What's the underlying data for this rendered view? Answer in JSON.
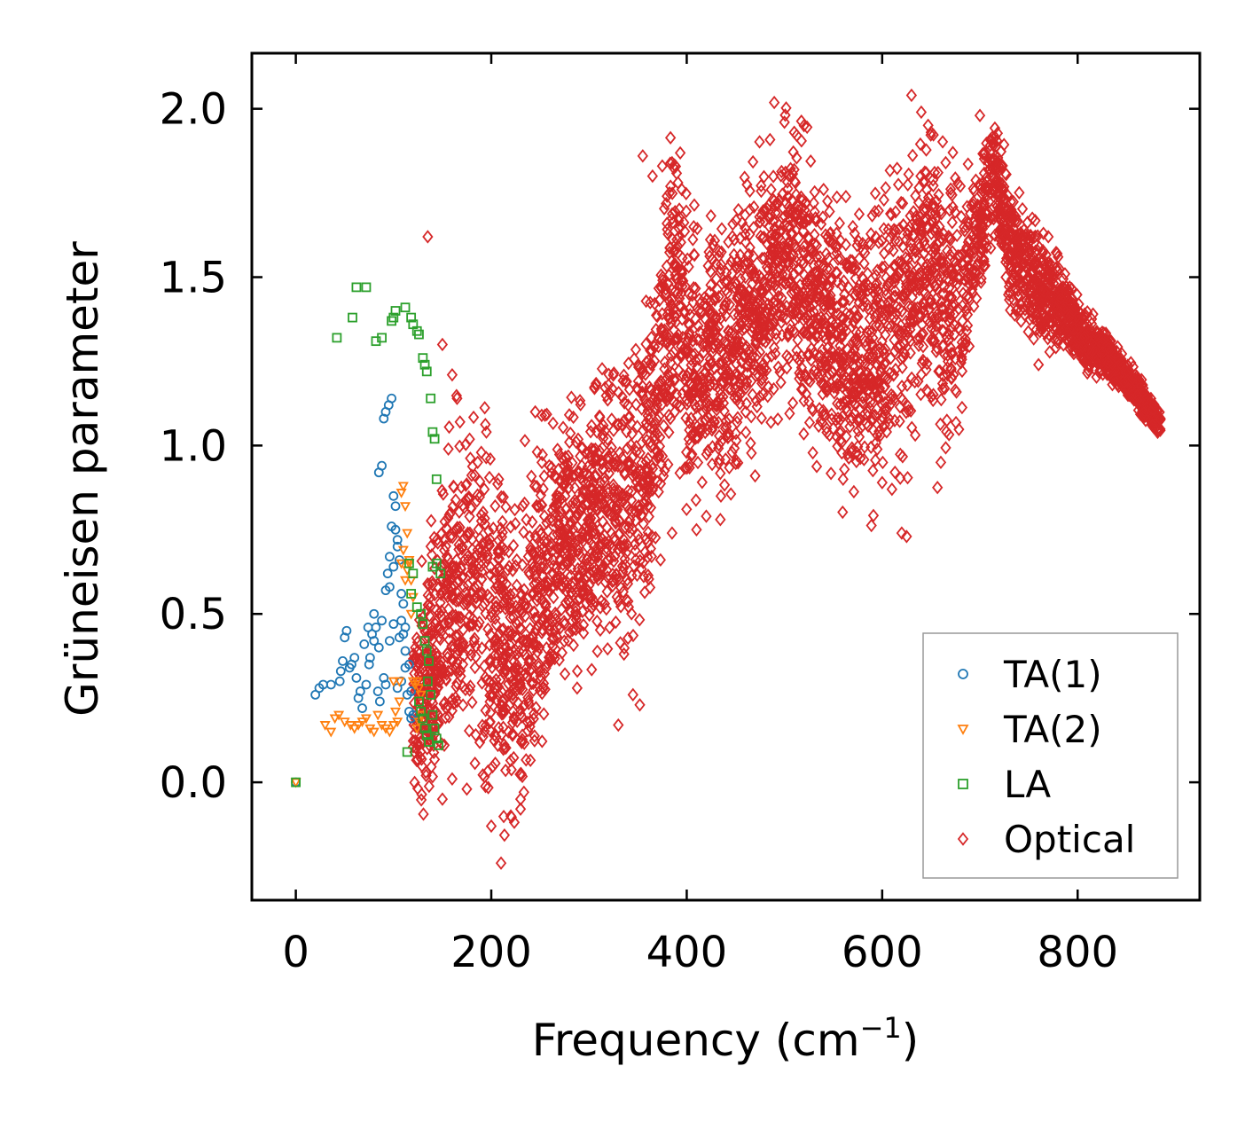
{
  "chart_data": {
    "type": "scatter",
    "xlabel": "Frequency (cm",
    "xlabel_sup": "−1",
    "xlabel_end": ")",
    "ylabel": "Grüneisen parameter",
    "xlim": [
      -45,
      925
    ],
    "ylim": [
      -0.35,
      2.165
    ],
    "xticks": [
      0,
      200,
      400,
      600,
      800
    ],
    "xtick_labels": [
      "0",
      "200",
      "400",
      "600",
      "800"
    ],
    "yticks": [
      0.0,
      0.5,
      1.0,
      1.5,
      2.0
    ],
    "ytick_labels": [
      "0.0",
      "0.5",
      "1.0",
      "1.5",
      "2.0"
    ],
    "legend_position": "lower-right",
    "series": [
      {
        "name": "TA(1)",
        "marker": "circle",
        "color": "#1f77b4",
        "points": [
          [
            0,
            0
          ],
          [
            20,
            0.26
          ],
          [
            24,
            0.28
          ],
          [
            28,
            0.29
          ],
          [
            36,
            0.29
          ],
          [
            45,
            0.3
          ],
          [
            46,
            0.33
          ],
          [
            48,
            0.36
          ],
          [
            50,
            0.43
          ],
          [
            52,
            0.45
          ],
          [
            55,
            0.34
          ],
          [
            57,
            0.35
          ],
          [
            60,
            0.37
          ],
          [
            64,
            0.25
          ],
          [
            68,
            0.22
          ],
          [
            72,
            0.29
          ],
          [
            75,
            0.35
          ],
          [
            78,
            0.44
          ],
          [
            80,
            0.5
          ],
          [
            82,
            0.46
          ],
          [
            85,
            0.4
          ],
          [
            88,
            0.48
          ],
          [
            90,
            0.31
          ],
          [
            92,
            0.29
          ],
          [
            94,
            0.62
          ],
          [
            96,
            0.67
          ],
          [
            98,
            0.76
          ],
          [
            100,
            0.85
          ],
          [
            102,
            0.82
          ],
          [
            104,
            0.72
          ],
          [
            106,
            0.43
          ],
          [
            108,
            0.48
          ],
          [
            110,
            0.44
          ],
          [
            112,
            0.39
          ],
          [
            114,
            0.26
          ],
          [
            116,
            0.21
          ],
          [
            118,
            0.19
          ],
          [
            120,
            0.2
          ],
          [
            85,
            0.92
          ],
          [
            88,
            0.94
          ],
          [
            90,
            1.08
          ],
          [
            92,
            1.1
          ],
          [
            95,
            1.12
          ],
          [
            98,
            1.14
          ],
          [
            102,
            0.75
          ],
          [
            104,
            0.7
          ],
          [
            106,
            0.66
          ],
          [
            108,
            0.56
          ],
          [
            110,
            0.53
          ],
          [
            112,
            0.46
          ],
          [
            62,
            0.31
          ],
          [
            66,
            0.27
          ],
          [
            70,
            0.41
          ],
          [
            74,
            0.46
          ],
          [
            76,
            0.37
          ],
          [
            80,
            0.42
          ],
          [
            84,
            0.27
          ],
          [
            86,
            0.24
          ],
          [
            96,
            0.42
          ],
          [
            100,
            0.47
          ],
          [
            104,
            0.28
          ],
          [
            108,
            0.3
          ],
          [
            112,
            0.34
          ],
          [
            116,
            0.35
          ],
          [
            118,
            0.27
          ],
          [
            92,
            0.57
          ],
          [
            96,
            0.58
          ],
          [
            100,
            0.64
          ]
        ]
      },
      {
        "name": "TA(2)",
        "marker": "triangle-down",
        "color": "#ff7f0e",
        "points": [
          [
            0,
            0
          ],
          [
            30,
            0.17
          ],
          [
            36,
            0.15
          ],
          [
            40,
            0.19
          ],
          [
            44,
            0.2
          ],
          [
            50,
            0.18
          ],
          [
            56,
            0.17
          ],
          [
            60,
            0.16
          ],
          [
            64,
            0.17
          ],
          [
            68,
            0.18
          ],
          [
            72,
            0.19
          ],
          [
            76,
            0.16
          ],
          [
            80,
            0.15
          ],
          [
            84,
            0.2
          ],
          [
            88,
            0.17
          ],
          [
            92,
            0.16
          ],
          [
            96,
            0.15
          ],
          [
            100,
            0.17
          ],
          [
            104,
            0.18
          ],
          [
            106,
            0.3
          ],
          [
            108,
            0.86
          ],
          [
            110,
            0.88
          ],
          [
            112,
            0.82
          ],
          [
            114,
            0.74
          ],
          [
            116,
            0.65
          ],
          [
            118,
            0.6
          ],
          [
            120,
            0.55
          ],
          [
            122,
            0.29
          ],
          [
            124,
            0.3
          ],
          [
            126,
            0.28
          ],
          [
            128,
            0.26
          ],
          [
            102,
            0.21
          ],
          [
            108,
            0.65
          ],
          [
            112,
            0.6
          ],
          [
            114,
            0.63
          ],
          [
            118,
            0.5
          ],
          [
            120,
            0.3
          ],
          [
            124,
            0.16
          ],
          [
            126,
            0.18
          ],
          [
            128,
            0.2
          ],
          [
            110,
            0.69
          ],
          [
            116,
            0.66
          ],
          [
            106,
            0.24
          ],
          [
            100,
            0.3
          ]
        ]
      },
      {
        "name": "LA",
        "marker": "square",
        "color": "#2ca02c",
        "points": [
          [
            0,
            0
          ],
          [
            42,
            1.32
          ],
          [
            58,
            1.38
          ],
          [
            62,
            1.47
          ],
          [
            72,
            1.47
          ],
          [
            82,
            1.31
          ],
          [
            88,
            1.32
          ],
          [
            98,
            1.37
          ],
          [
            100,
            1.38
          ],
          [
            102,
            1.4
          ],
          [
            112,
            1.41
          ],
          [
            118,
            1.38
          ],
          [
            124,
            1.34
          ],
          [
            130,
            1.26
          ],
          [
            132,
            1.24
          ],
          [
            134,
            1.22
          ],
          [
            138,
            1.14
          ],
          [
            140,
            1.04
          ],
          [
            142,
            1.02
          ],
          [
            144,
            0.9
          ],
          [
            126,
            1.33
          ],
          [
            120,
            1.36
          ],
          [
            140,
            0.64
          ],
          [
            144,
            0.65
          ],
          [
            148,
            0.62
          ],
          [
            135,
            0.3
          ],
          [
            138,
            0.26
          ],
          [
            140,
            0.2
          ],
          [
            142,
            0.16
          ],
          [
            144,
            0.13
          ],
          [
            146,
            0.11
          ],
          [
            114,
            0.09
          ],
          [
            118,
            0.56
          ],
          [
            124,
            0.52
          ],
          [
            128,
            0.5
          ],
          [
            130,
            0.47
          ],
          [
            132,
            0.42
          ],
          [
            134,
            0.39
          ],
          [
            136,
            0.36
          ],
          [
            126,
            0.24
          ],
          [
            128,
            0.21
          ],
          [
            130,
            0.19
          ],
          [
            132,
            0.16
          ],
          [
            134,
            0.14
          ],
          [
            136,
            0.12
          ],
          [
            116,
            0.65
          ],
          [
            120,
            0.62
          ]
        ]
      },
      {
        "name": "Optical",
        "marker": "diamond",
        "color": "#d62728",
        "band": [
          [
            120,
            0.2
          ],
          [
            150,
            0.45
          ],
          [
            170,
            0.6
          ],
          [
            190,
            0.55
          ],
          [
            210,
            0.4
          ],
          [
            230,
            0.35
          ],
          [
            250,
            0.55
          ],
          [
            270,
            0.7
          ],
          [
            290,
            0.72
          ],
          [
            310,
            0.8
          ],
          [
            330,
            0.78
          ],
          [
            350,
            0.9
          ],
          [
            370,
            1.1
          ],
          [
            380,
            1.3
          ],
          [
            390,
            1.5
          ],
          [
            400,
            1.25
          ],
          [
            420,
            1.3
          ],
          [
            440,
            1.25
          ],
          [
            460,
            1.4
          ],
          [
            480,
            1.45
          ],
          [
            500,
            1.55
          ],
          [
            520,
            1.5
          ],
          [
            540,
            1.35
          ],
          [
            560,
            1.3
          ],
          [
            580,
            1.25
          ],
          [
            600,
            1.3
          ],
          [
            620,
            1.4
          ],
          [
            640,
            1.55
          ],
          [
            660,
            1.45
          ],
          [
            680,
            1.4
          ],
          [
            700,
            1.65
          ],
          [
            715,
            1.85
          ],
          [
            730,
            1.6
          ],
          [
            750,
            1.5
          ],
          [
            770,
            1.45
          ],
          [
            790,
            1.4
          ],
          [
            810,
            1.3
          ],
          [
            830,
            1.27
          ],
          [
            850,
            1.2
          ],
          [
            870,
            1.12
          ],
          [
            885,
            1.06
          ]
        ],
        "spread": [
          [
            120,
            0.2
          ],
          [
            150,
            0.35
          ],
          [
            200,
            0.4
          ],
          [
            240,
            0.35
          ],
          [
            300,
            0.3
          ],
          [
            360,
            0.35
          ],
          [
            390,
            0.35
          ],
          [
            420,
            0.3
          ],
          [
            480,
            0.3
          ],
          [
            520,
            0.3
          ],
          [
            560,
            0.3
          ],
          [
            620,
            0.35
          ],
          [
            660,
            0.35
          ],
          [
            700,
            0.15
          ],
          [
            740,
            0.15
          ],
          [
            800,
            0.07
          ],
          [
            885,
            0.03
          ]
        ],
        "outliers": [
          [
            135,
            1.62
          ],
          [
            150,
            1.3
          ],
          [
            160,
            1.21
          ],
          [
            165,
            1.14
          ],
          [
            168,
            1.07
          ],
          [
            195,
            1.04
          ],
          [
            245,
            1.1
          ],
          [
            255,
            1.09
          ],
          [
            280,
            1.01
          ],
          [
            300,
            0.98
          ],
          [
            320,
            1.18
          ],
          [
            340,
            1.12
          ],
          [
            355,
            1.86
          ],
          [
            365,
            1.8
          ],
          [
            375,
            1.83
          ],
          [
            385,
            1.84
          ],
          [
            395,
            1.76
          ],
          [
            210,
            -0.24
          ],
          [
            200,
            -0.13
          ],
          [
            220,
            -0.1
          ],
          [
            230,
            -0.05
          ],
          [
            330,
            0.17
          ],
          [
            345,
            0.26
          ],
          [
            352,
            0.23
          ],
          [
            385,
            0.74
          ],
          [
            410,
            0.75
          ],
          [
            420,
            0.79
          ],
          [
            435,
            0.85
          ],
          [
            470,
            0.91
          ],
          [
            480,
            1.7
          ],
          [
            500,
            1.96
          ],
          [
            510,
            1.93
          ],
          [
            520,
            1.95
          ],
          [
            530,
            1.72
          ],
          [
            550,
            1.6
          ],
          [
            570,
            1.65
          ],
          [
            580,
            1.6
          ],
          [
            595,
            1.52
          ],
          [
            620,
            0.74
          ],
          [
            625,
            0.73
          ],
          [
            630,
            2.04
          ],
          [
            640,
            1.99
          ],
          [
            650,
            1.93
          ],
          [
            665,
            1.84
          ],
          [
            680,
            1.77
          ],
          [
            700,
            1.98
          ],
          [
            705,
            1.87
          ],
          [
            720,
            1.75
          ],
          [
            760,
            1.24
          ],
          [
            765,
            1.63
          ],
          [
            770,
            1.62
          ],
          [
            780,
            1.56
          ],
          [
            600,
            0.89
          ],
          [
            610,
            0.87
          ],
          [
            660,
            0.95
          ],
          [
            560,
            0.9
          ],
          [
            575,
            0.97
          ],
          [
            150,
            -0.05
          ],
          [
            160,
            0.01
          ],
          [
            175,
            -0.02
          ]
        ]
      }
    ]
  }
}
